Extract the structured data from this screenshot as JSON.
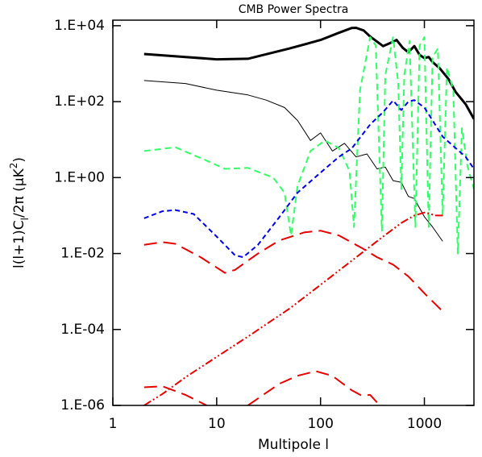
{
  "chart_data": {
    "type": "line",
    "title": "CMB Power Spectra",
    "xlabel": "Multipole l",
    "ylabel": [
      "l(l+1)C",
      "l",
      "/2π (μK",
      "2",
      ")"
    ],
    "xscale": "log",
    "yscale": "log",
    "xlim": [
      1,
      3000
    ],
    "ylim": [
      1e-06,
      14000
    ],
    "xticks": [
      1,
      10,
      100,
      1000
    ],
    "yticks": [
      {
        "value": 10000,
        "label": "1.E+04"
      },
      {
        "value": 100,
        "label": "1.E+02"
      },
      {
        "value": 1,
        "label": "1.E+00"
      },
      {
        "value": 0.01,
        "label": "1.E-02"
      },
      {
        "value": 0.0001,
        "label": "1.E-04"
      },
      {
        "value": 1e-06,
        "label": "1.E-06"
      }
    ],
    "series": [
      {
        "color": "#000000",
        "width": 3,
        "dash": "none",
        "x": [
          2,
          5,
          10,
          20,
          50,
          100,
          150,
          200,
          220,
          260,
          300,
          400,
          480,
          540,
          620,
          700,
          800,
          900,
          1000,
          1100,
          1200,
          1400,
          1700,
          2000,
          2500,
          3000
        ],
        "values": [
          1800,
          1500,
          1300,
          1350,
          2500,
          4200,
          6500,
          8700,
          8800,
          7500,
          5200,
          2900,
          3600,
          4200,
          2600,
          2000,
          2900,
          1700,
          1400,
          1500,
          1100,
          760,
          400,
          180,
          85,
          35
        ]
      },
      {
        "color": "#000000",
        "width": 1,
        "dash": "none",
        "x": [
          2,
          5,
          10,
          20,
          30,
          45,
          60,
          80,
          100,
          130,
          170,
          220,
          280,
          350,
          420,
          500,
          600,
          700,
          800,
          1000,
          1200,
          1500
        ],
        "values": [
          360,
          300,
          200,
          150,
          110,
          70,
          32,
          9.5,
          15,
          5,
          8,
          3.5,
          4.2,
          1.7,
          1.9,
          0.83,
          0.75,
          0.32,
          0.28,
          0.093,
          0.05,
          0.021
        ]
      },
      {
        "color": "#33ff66",
        "width": 2,
        "dash": "8,5",
        "x": [
          2,
          4,
          8,
          12,
          20,
          35,
          45,
          52,
          60,
          80,
          110,
          150,
          190,
          210,
          240,
          300,
          340,
          390,
          420,
          500,
          560,
          600,
          640,
          720,
          820,
          900,
          1000,
          1100,
          1200,
          1350,
          1500,
          1650,
          1900,
          2100,
          2300,
          2600,
          3000
        ],
        "values": [
          5,
          6.3,
          2.8,
          1.7,
          1.8,
          1.0,
          0.4,
          0.03,
          0.6,
          5,
          9.5,
          6,
          1.5,
          0.05,
          200,
          5000,
          3000,
          0.04,
          500,
          5000,
          300,
          0.5,
          500,
          4000,
          0.05,
          3000,
          5000,
          0.05,
          1500,
          2500,
          0.1,
          800,
          200,
          0.01,
          20,
          2,
          0.5
        ]
      },
      {
        "color": "#0000ee",
        "width": 2,
        "dash": "6,4",
        "x": [
          2,
          3,
          4,
          6,
          10,
          15,
          18,
          25,
          40,
          60,
          100,
          150,
          200,
          300,
          400,
          500,
          600,
          700,
          800,
          1000,
          1200,
          1500,
          2000,
          2500,
          3000
        ],
        "values": [
          0.085,
          0.13,
          0.14,
          0.11,
          0.028,
          0.009,
          0.008,
          0.017,
          0.09,
          0.4,
          1.35,
          3.5,
          5.9,
          25,
          53,
          107,
          60,
          100,
          110,
          70,
          32,
          12,
          6,
          3.5,
          1.7
        ]
      },
      {
        "color": "#e80000",
        "width": 2,
        "dash": "16,8",
        "x": [
          2,
          3,
          4,
          7,
          12,
          15,
          25,
          40,
          70,
          100,
          150,
          250,
          350,
          500,
          700,
          1000,
          1500
        ],
        "values": [
          0.017,
          0.02,
          0.018,
          0.008,
          0.0031,
          0.0037,
          0.01,
          0.022,
          0.036,
          0.04,
          0.03,
          0.014,
          0.008,
          0.0051,
          0.0025,
          0.0009,
          0.0003
        ]
      },
      {
        "color": "#e80000",
        "width": 2,
        "dash": "16,8",
        "x": [
          2,
          3,
          5,
          8,
          12,
          20,
          40,
          60,
          90,
          130,
          200,
          250,
          300,
          350,
          400
        ],
        "values": [
          3e-06,
          3.2e-06,
          1.9e-06,
          1e-06,
          null,
          1e-06,
          3.7e-06,
          6e-06,
          8e-06,
          6e-06,
          2.5e-06,
          1.8e-06,
          1.9e-06,
          1.2e-06,
          1e-06
        ]
      },
      {
        "color": "#e80000",
        "width": 2,
        "dash": "10,3,2,3,2,3",
        "x": [
          2,
          3,
          5,
          10,
          20,
          50,
          100,
          200,
          400,
          600,
          800,
          1000,
          1300,
          1500
        ],
        "values": [
          1e-06,
          2e-06,
          5.5e-06,
          1.9e-05,
          6.5e-05,
          0.00035,
          0.0015,
          0.0065,
          0.028,
          0.064,
          0.1,
          0.12,
          0.1,
          0.1
        ]
      }
    ]
  }
}
